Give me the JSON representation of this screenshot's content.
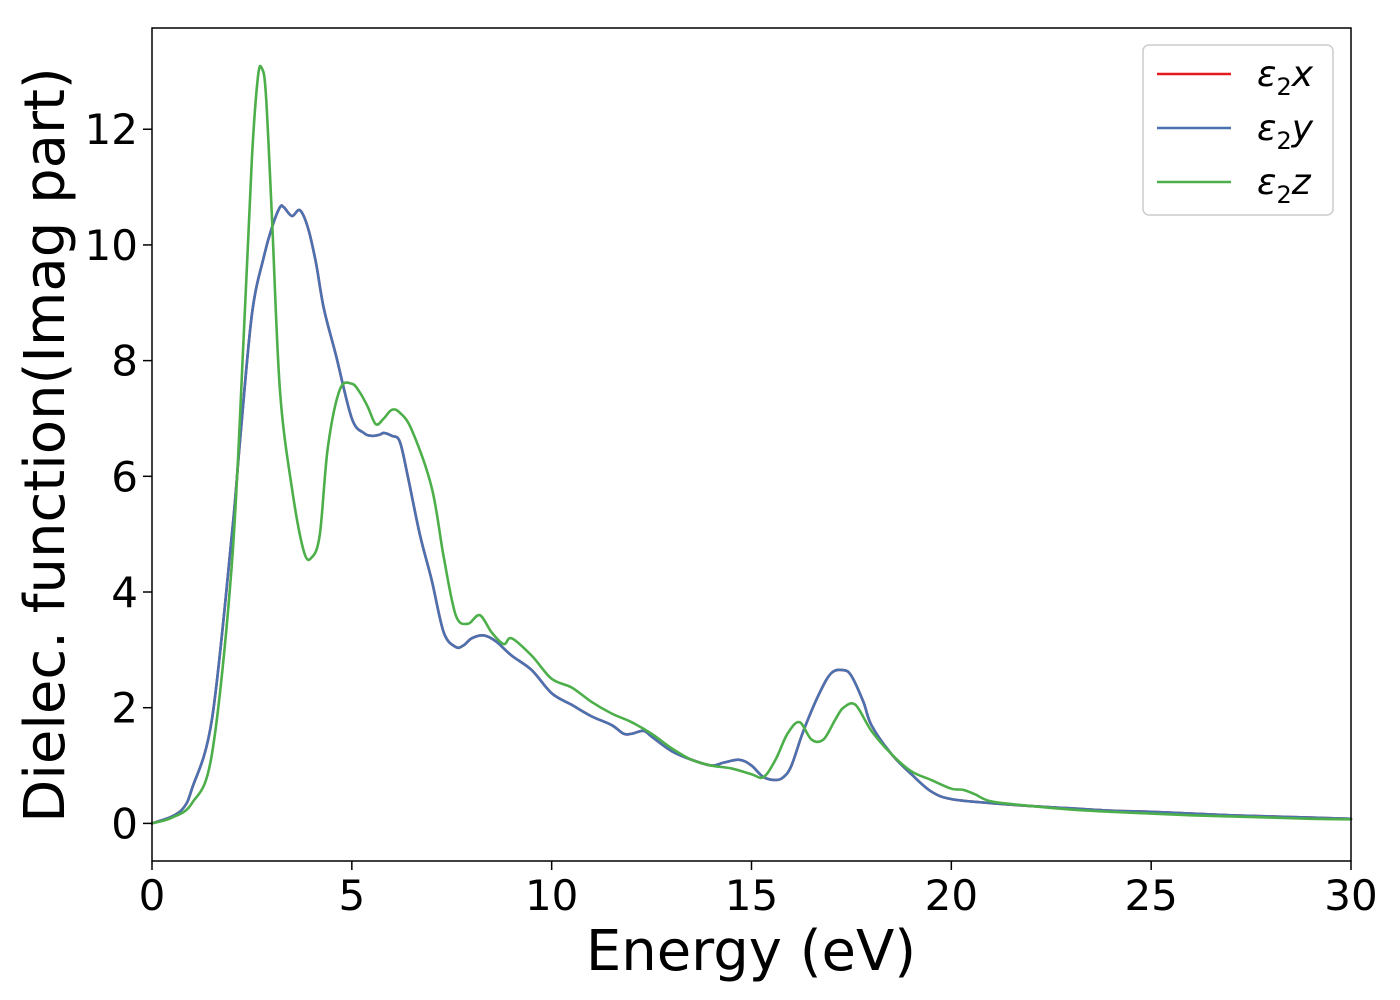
{
  "chart_data": {
    "type": "line",
    "xlabel": "Energy (eV)",
    "ylabel": "Dielec. function(Imag part)",
    "xlim": [
      0,
      30
    ],
    "ylim": [
      -0.65,
      13.75
    ],
    "xticks": [
      0,
      5,
      10,
      15,
      20,
      25,
      30
    ],
    "yticks": [
      0,
      2,
      4,
      6,
      8,
      10,
      12
    ],
    "grid": false,
    "legend_position": "top-right",
    "series": [
      {
        "name": "ε2x",
        "color": "#e41a1c",
        "x": [
          0,
          0.5,
          0.8,
          1.0,
          1.5,
          2.0,
          2.2,
          2.5,
          2.8,
          3.0,
          3.2,
          3.3,
          3.5,
          3.7,
          3.9,
          4.1,
          4.3,
          4.6,
          5.0,
          5.3,
          5.5,
          5.7,
          5.8,
          6.0,
          6.2,
          6.4,
          6.7,
          7.0,
          7.3,
          7.6,
          7.8,
          8.0,
          8.3,
          8.6,
          9.0,
          9.5,
          10.0,
          10.5,
          11.0,
          11.5,
          11.8,
          12.0,
          12.3,
          12.5,
          13.0,
          13.5,
          14.0,
          14.3,
          14.7,
          15.0,
          15.3,
          15.6,
          15.8,
          16.0,
          16.3,
          16.7,
          17.0,
          17.3,
          17.5,
          17.8,
          18.0,
          18.5,
          19.0,
          19.5,
          20.0,
          21.0,
          22.0,
          23.0,
          24.0,
          25.0,
          26.0,
          27.0,
          28.0,
          29.0,
          30.0
        ],
        "values": [
          0,
          0.12,
          0.28,
          0.6,
          1.8,
          5.0,
          6.6,
          8.8,
          9.8,
          10.3,
          10.65,
          10.65,
          10.5,
          10.6,
          10.3,
          9.7,
          8.9,
          8.1,
          7.0,
          6.75,
          6.7,
          6.72,
          6.75,
          6.7,
          6.6,
          6.0,
          5.0,
          4.2,
          3.3,
          3.05,
          3.08,
          3.2,
          3.25,
          3.15,
          2.9,
          2.65,
          2.25,
          2.05,
          1.85,
          1.7,
          1.55,
          1.55,
          1.6,
          1.5,
          1.25,
          1.1,
          1.0,
          1.05,
          1.1,
          1.0,
          0.8,
          0.75,
          0.8,
          1.0,
          1.6,
          2.25,
          2.6,
          2.65,
          2.55,
          2.1,
          1.7,
          1.2,
          0.85,
          0.55,
          0.42,
          0.35,
          0.3,
          0.26,
          0.22,
          0.2,
          0.17,
          0.14,
          0.12,
          0.1,
          0.08
        ]
      },
      {
        "name": "ε2y",
        "color": "#4a72b0",
        "x": [
          0,
          0.5,
          0.8,
          1.0,
          1.5,
          2.0,
          2.2,
          2.5,
          2.8,
          3.0,
          3.2,
          3.3,
          3.5,
          3.7,
          3.9,
          4.1,
          4.3,
          4.6,
          5.0,
          5.3,
          5.5,
          5.7,
          5.8,
          6.0,
          6.2,
          6.4,
          6.7,
          7.0,
          7.3,
          7.6,
          7.8,
          8.0,
          8.3,
          8.6,
          9.0,
          9.5,
          10.0,
          10.5,
          11.0,
          11.5,
          11.8,
          12.0,
          12.3,
          12.5,
          13.0,
          13.5,
          14.0,
          14.3,
          14.7,
          15.0,
          15.3,
          15.6,
          15.8,
          16.0,
          16.3,
          16.7,
          17.0,
          17.3,
          17.5,
          17.8,
          18.0,
          18.5,
          19.0,
          19.5,
          20.0,
          21.0,
          22.0,
          23.0,
          24.0,
          25.0,
          26.0,
          27.0,
          28.0,
          29.0,
          30.0
        ],
        "values": [
          0,
          0.12,
          0.28,
          0.6,
          1.8,
          5.0,
          6.6,
          8.8,
          9.8,
          10.3,
          10.65,
          10.65,
          10.5,
          10.6,
          10.3,
          9.7,
          8.9,
          8.1,
          7.0,
          6.75,
          6.7,
          6.72,
          6.75,
          6.7,
          6.6,
          6.0,
          5.0,
          4.2,
          3.3,
          3.05,
          3.08,
          3.2,
          3.25,
          3.15,
          2.9,
          2.65,
          2.25,
          2.05,
          1.85,
          1.7,
          1.55,
          1.55,
          1.6,
          1.5,
          1.25,
          1.1,
          1.0,
          1.05,
          1.1,
          1.0,
          0.8,
          0.75,
          0.8,
          1.0,
          1.6,
          2.25,
          2.6,
          2.65,
          2.55,
          2.1,
          1.7,
          1.2,
          0.85,
          0.55,
          0.42,
          0.35,
          0.3,
          0.26,
          0.22,
          0.2,
          0.17,
          0.14,
          0.12,
          0.1,
          0.08
        ]
      },
      {
        "name": "ε2z",
        "color": "#4daf4a",
        "x": [
          0,
          0.5,
          1.0,
          1.5,
          2.0,
          2.3,
          2.5,
          2.65,
          2.75,
          2.85,
          3.0,
          3.2,
          3.5,
          3.8,
          4.0,
          4.2,
          4.4,
          4.7,
          5.0,
          5.2,
          5.4,
          5.6,
          5.8,
          6.0,
          6.2,
          6.5,
          7.0,
          7.3,
          7.6,
          7.9,
          8.2,
          8.5,
          8.8,
          9.0,
          9.5,
          10.0,
          10.5,
          11.0,
          11.5,
          12.0,
          12.5,
          13.0,
          13.5,
          14.0,
          14.5,
          15.0,
          15.3,
          15.6,
          15.9,
          16.2,
          16.5,
          16.8,
          17.1,
          17.3,
          17.6,
          18.0,
          18.5,
          19.0,
          19.5,
          20.0,
          20.3,
          20.6,
          21.0,
          22.0,
          23.0,
          24.0,
          25.0,
          26.0,
          27.0,
          28.0,
          29.0,
          30.0
        ],
        "values": [
          0,
          0.1,
          0.35,
          1.2,
          4.5,
          8.5,
          11.5,
          12.9,
          13.05,
          12.6,
          10.5,
          7.5,
          5.8,
          4.7,
          4.6,
          5.0,
          6.5,
          7.5,
          7.6,
          7.45,
          7.2,
          6.9,
          7.0,
          7.15,
          7.1,
          6.8,
          5.8,
          4.6,
          3.6,
          3.45,
          3.6,
          3.3,
          3.1,
          3.2,
          2.9,
          2.5,
          2.35,
          2.1,
          1.9,
          1.75,
          1.55,
          1.3,
          1.1,
          1.0,
          0.95,
          0.85,
          0.8,
          1.1,
          1.55,
          1.75,
          1.45,
          1.45,
          1.8,
          2.0,
          2.05,
          1.6,
          1.2,
          0.9,
          0.75,
          0.6,
          0.58,
          0.5,
          0.38,
          0.3,
          0.24,
          0.2,
          0.17,
          0.14,
          0.12,
          0.1,
          0.08,
          0.07
        ]
      }
    ]
  }
}
